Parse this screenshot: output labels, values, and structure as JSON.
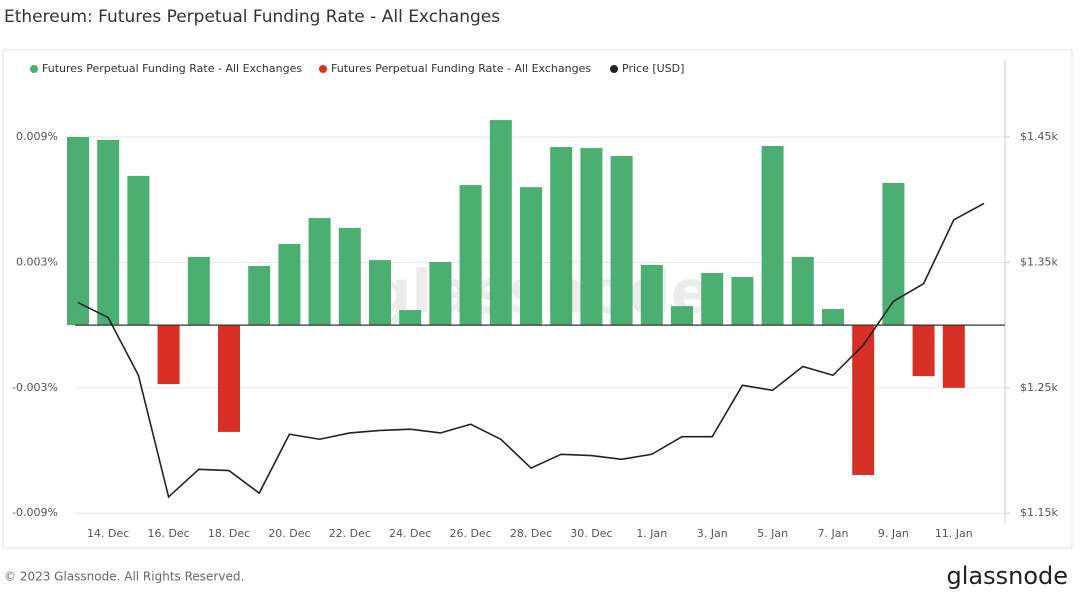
{
  "chart_data": {
    "type": "bar",
    "title": "Ethereum: Futures Perpetual Funding Rate - All Exchanges",
    "watermark": "glassnode",
    "footer": "© 2023 Glassnode. All Rights Reserved.",
    "brand": "glassnode",
    "categories": [
      null,
      "14. Dec",
      null,
      "16. Dec",
      null,
      "18. Dec",
      null,
      "20. Dec",
      null,
      "22. Dec",
      null,
      "24. Dec",
      null,
      "26. Dec",
      null,
      "28. Dec",
      null,
      "30. Dec",
      null,
      "1. Jan",
      null,
      "3. Jan",
      null,
      "5. Jan",
      null,
      "7. Jan",
      null,
      "9. Jan",
      null,
      "11. Jan",
      null
    ],
    "series": [
      {
        "name": "Futures Perpetual Funding Rate - All Exchanges",
        "color": "#4caf72",
        "type": "bar",
        "values": [
          0.009,
          0.00886,
          0.00714,
          null,
          0.00326,
          null,
          0.00283,
          0.00388,
          0.00512,
          0.00465,
          0.00311,
          0.00072,
          0.00302,
          0.0067,
          0.00981,
          0.0066,
          0.00852,
          0.00847,
          0.00809,
          0.00288,
          0.00091,
          0.00249,
          0.0023,
          0.00857,
          0.00326,
          0.00077,
          null,
          0.0068,
          null,
          null,
          null
        ]
      },
      {
        "name": "Futures Perpetual Funding Rate - All Exchanges",
        "color": "#d93025",
        "type": "bar",
        "values": [
          null,
          null,
          null,
          -0.00282,
          null,
          -0.00511,
          null,
          null,
          null,
          null,
          null,
          null,
          null,
          null,
          null,
          null,
          null,
          null,
          null,
          null,
          null,
          null,
          null,
          null,
          null,
          null,
          -0.00717,
          null,
          -0.00244,
          -0.003,
          null
        ]
      },
      {
        "name": "Price [USD]",
        "color": "#222222",
        "type": "line",
        "axis": "y2",
        "values": [
          1318,
          1306,
          1260,
          1163,
          1185,
          1184,
          1166,
          1213,
          1209,
          1214,
          1216,
          1217,
          1214,
          1221,
          1209,
          1186,
          1197,
          1196,
          1193,
          1197,
          1211,
          1211,
          1252,
          1248,
          1267,
          1260,
          1284,
          1319,
          1333,
          1384,
          1397
        ]
      }
    ],
    "ylim": [
      -0.0093,
      0.012
    ],
    "yticks": [
      {
        "value": 0.009,
        "label": "0.009%"
      },
      {
        "value": 0.003,
        "label": "0.003%"
      },
      {
        "value": -0.003,
        "label": "-0.003%"
      },
      {
        "value": -0.009,
        "label": "-0.009%"
      }
    ],
    "y2lim": [
      1145,
      1500
    ],
    "y2ticks": [
      {
        "value": 1450,
        "label": "$1.45k"
      },
      {
        "value": 1350,
        "label": "$1.35k"
      },
      {
        "value": 1250,
        "label": "$1.25k"
      },
      {
        "value": 1150,
        "label": "$1.15k"
      }
    ],
    "grid": true
  }
}
